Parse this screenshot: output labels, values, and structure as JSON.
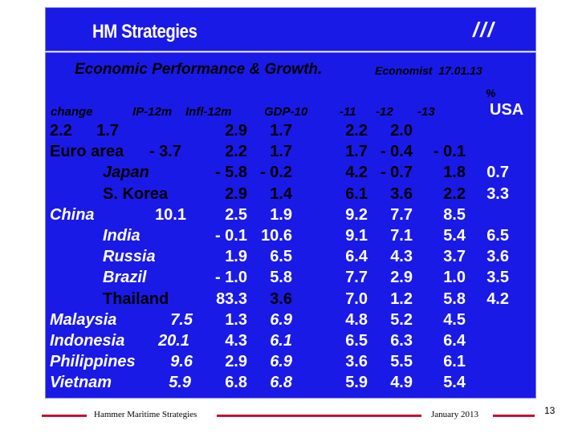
{
  "header": {
    "title": "HM Strategies",
    "marks": "///"
  },
  "subtitle": {
    "main": "Economic Performance & Growth.",
    "source": "Economist  17.01.13",
    "unit": "%"
  },
  "columns": {
    "change": "change",
    "ip": "IP-12m",
    "infl": "Infl-12m",
    "gdp10": "GDP-10",
    "y11": "-11",
    "y12": "-12",
    "y13": "-13",
    "usa": "USA"
  },
  "rows": [
    {
      "country": "2.2",
      "ip": "1.7",
      "infl": "2.9",
      "gdp10": "1.7",
      "y11": "2.2",
      "y12": "2.0",
      "y13": "",
      "usa": ""
    },
    {
      "country": "Euro area",
      "ip": "- 3.7",
      "infl": "2.2",
      "gdp10": "1.7",
      "y11": "1.7",
      "y12": "- 0.4",
      "y13": "- 0.1",
      "usa": ""
    },
    {
      "country": "Japan",
      "ip": "",
      "infl": "- 5.8",
      "gdp10": "- 0.2",
      "y11": "4.2",
      "y12": "- 0.7",
      "y13": "1.8",
      "usa": "0.7"
    },
    {
      "country": "S. Korea",
      "ip": "",
      "infl": "2.9",
      "gdp10": "1.4",
      "y11": "6.1",
      "y12": "3.6",
      "y13": "2.2",
      "usa": "3.3"
    },
    {
      "country": "China",
      "ip": "10.1",
      "infl": "2.5",
      "gdp10": "1.9",
      "y11": "9.2",
      "y12": "7.7",
      "y13": "8.5",
      "usa": ""
    },
    {
      "country": "India",
      "ip": "",
      "infl": "- 0.1",
      "gdp10": "10.6",
      "y11": "9.1",
      "y12": "7.1",
      "y13": "5.4",
      "usa": "6.5"
    },
    {
      "country": "Russia",
      "ip": "",
      "infl": "1.9",
      "gdp10": "6.5",
      "y11": "6.4",
      "y12": "4.3",
      "y13": "3.7",
      "usa": "3.6"
    },
    {
      "country": "Brazil",
      "ip": "",
      "infl": "- 1.0",
      "gdp10": "5.8",
      "y11": "7.7",
      "y12": "2.9",
      "y13": "1.0",
      "usa": "3.5"
    },
    {
      "country": "Thailand",
      "ip": "",
      "infl": "83.3",
      "gdp10": "3.6",
      "y11": "7.0",
      "y12": "1.2",
      "y13": "5.8",
      "usa": "4.2"
    },
    {
      "country": "Malaysia",
      "ip": "7.5",
      "infl": "1.3",
      "gdp10": "6.9",
      "y11": "4.8",
      "y12": "5.2",
      "y13": "4.5",
      "usa": ""
    },
    {
      "country": "Indonesia",
      "ip": "20.1",
      "infl": "4.3",
      "gdp10": "6.1",
      "y11": "6.5",
      "y12": "6.3",
      "y13": "6.4",
      "usa": ""
    },
    {
      "country": "Philippines",
      "ip": "9.6",
      "infl": "2.9",
      "gdp10": "6.9",
      "y11": "3.6",
      "y12": "5.5",
      "y13": "6.1",
      "usa": ""
    },
    {
      "country": "Vietnam",
      "ip": "5.9",
      "infl": "6.8",
      "gdp10": "6.8",
      "y11": "5.9",
      "y12": "4.9",
      "y13": "5.4",
      "usa": ""
    }
  ],
  "footer": {
    "left": "Hammer Maritime Strategies",
    "right": "January 2013",
    "page": "13"
  },
  "colors": {
    "panel": "#1a1ae6",
    "accent_line": "#c8102e"
  }
}
